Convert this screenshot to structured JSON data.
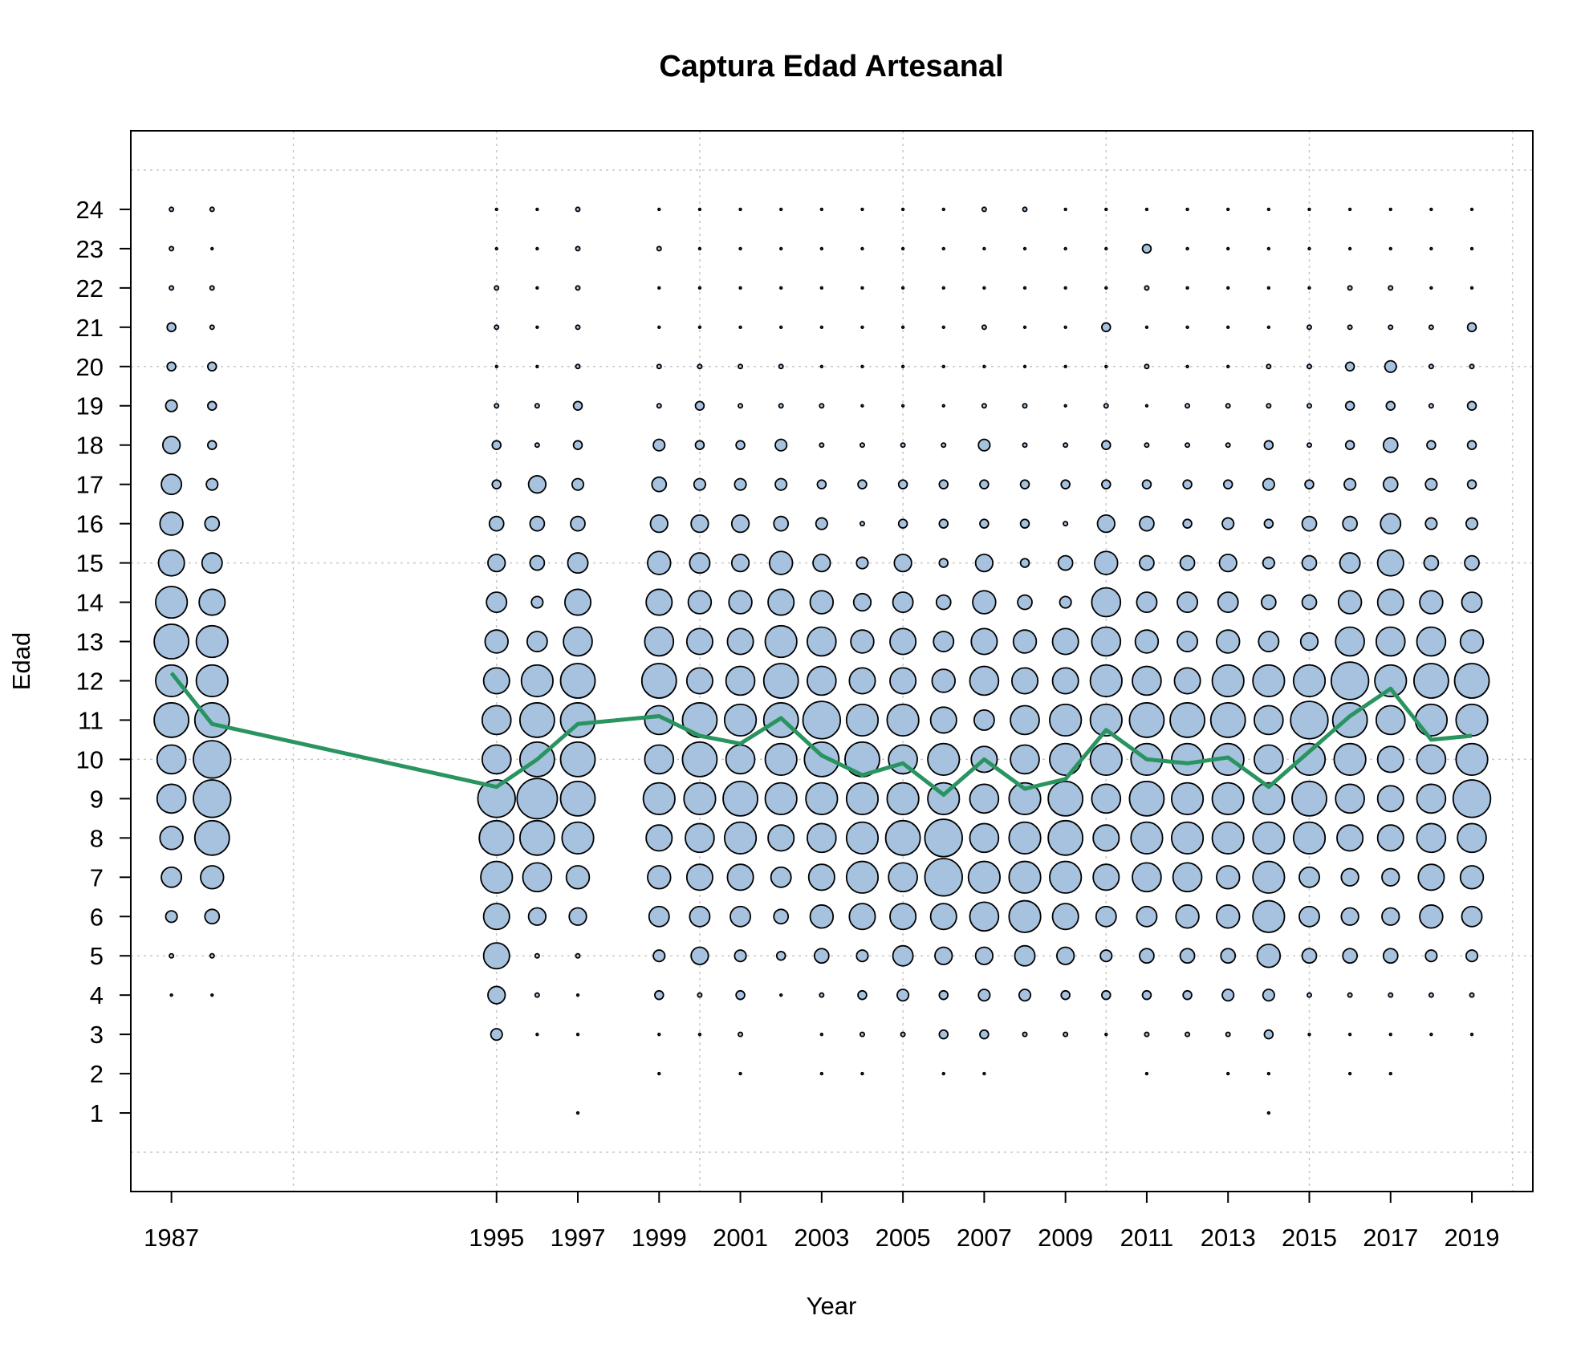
{
  "chart_data": {
    "type": "scatter",
    "subtype": "bubble",
    "title": "Captura Edad Artesanal",
    "xlabel": "Year",
    "ylabel": "Edad",
    "x_tick_labels": [
      1987,
      1995,
      1997,
      1999,
      2001,
      2003,
      2005,
      2007,
      2009,
      2011,
      2013,
      2015,
      2017,
      2019
    ],
    "y_tick_labels": [
      1,
      2,
      3,
      4,
      5,
      6,
      7,
      8,
      9,
      10,
      11,
      12,
      13,
      14,
      15,
      16,
      17,
      18,
      19,
      20,
      21,
      22,
      23,
      24
    ],
    "xlim": [
      1986,
      2020.5
    ],
    "ylim": [
      -1,
      26
    ],
    "grid": true,
    "grid_x": [
      1990,
      1995,
      2000,
      2005,
      2010,
      2015,
      2020
    ],
    "grid_y": [
      0,
      5,
      10,
      15,
      20,
      25
    ],
    "colors": {
      "bubble_fill": "#a6c2de",
      "bubble_stroke": "#000000",
      "mean_line": "#2a9461",
      "grid": "#c8c8c8"
    },
    "years": [
      1987,
      1988,
      1995,
      1996,
      1997,
      1999,
      2000,
      2001,
      2002,
      2003,
      2004,
      2005,
      2006,
      2007,
      2008,
      2009,
      2010,
      2011,
      2012,
      2013,
      2014,
      2015,
      2016,
      2017,
      2018,
      2019
    ],
    "ages": [
      1,
      2,
      3,
      4,
      5,
      6,
      7,
      8,
      9,
      10,
      11,
      12,
      13,
      14,
      15,
      16,
      17,
      18,
      19,
      20,
      21,
      22,
      23,
      24
    ],
    "bubble_radius_max_age_yr": 1,
    "bubble_size": [
      [
        0,
        0,
        0,
        1,
        2,
        4,
        7,
        8,
        10,
        10,
        12,
        11,
        12,
        11,
        9,
        8,
        7,
        6,
        4,
        3,
        3,
        2,
        2,
        2
      ],
      [
        0,
        0,
        0,
        1,
        2,
        5,
        8,
        12,
        13,
        13,
        12,
        11,
        11,
        9,
        7,
        5,
        4,
        3,
        3,
        3,
        2,
        2,
        1,
        2
      ],
      [
        0,
        0,
        4,
        6,
        9,
        9,
        11,
        12,
        13,
        10,
        10,
        9,
        8,
        7,
        6,
        5,
        3,
        3,
        2,
        1,
        2,
        2,
        1,
        1
      ],
      [
        0,
        0,
        1,
        2,
        2,
        6,
        10,
        12,
        14,
        12,
        12,
        11,
        7,
        4,
        5,
        5,
        6,
        2,
        2,
        1,
        1,
        1,
        1,
        1
      ],
      [
        1,
        0,
        1,
        1,
        2,
        6,
        8,
        11,
        12,
        12,
        12,
        12,
        10,
        9,
        7,
        5,
        4,
        3,
        3,
        2,
        2,
        2,
        2,
        2
      ],
      [
        0,
        1,
        1,
        3,
        4,
        7,
        8,
        9,
        11,
        10,
        10,
        12,
        10,
        9,
        8,
        6,
        5,
        4,
        2,
        2,
        1,
        1,
        2,
        1
      ],
      [
        0,
        0,
        1,
        2,
        6,
        7,
        9,
        10,
        11,
        12,
        12,
        9,
        9,
        8,
        7,
        6,
        4,
        3,
        3,
        2,
        1,
        1,
        1,
        1
      ],
      [
        0,
        1,
        2,
        3,
        4,
        7,
        9,
        11,
        12,
        10,
        11,
        10,
        9,
        8,
        6,
        6,
        4,
        3,
        2,
        2,
        1,
        1,
        1,
        1
      ],
      [
        0,
        0,
        0,
        1,
        3,
        5,
        7,
        9,
        11,
        11,
        12,
        12,
        11,
        9,
        8,
        5,
        4,
        4,
        2,
        2,
        1,
        1,
        1,
        1
      ],
      [
        0,
        1,
        1,
        2,
        5,
        8,
        9,
        10,
        11,
        12,
        13,
        10,
        10,
        8,
        6,
        4,
        3,
        2,
        2,
        1,
        1,
        1,
        1,
        1
      ],
      [
        0,
        1,
        2,
        3,
        4,
        9,
        11,
        11,
        11,
        12,
        11,
        9,
        8,
        6,
        4,
        2,
        3,
        2,
        1,
        1,
        1,
        1,
        1,
        1
      ],
      [
        0,
        0,
        2,
        4,
        7,
        9,
        10,
        12,
        11,
        10,
        11,
        9,
        9,
        7,
        6,
        3,
        3,
        2,
        1,
        1,
        1,
        1,
        1,
        1
      ],
      [
        0,
        1,
        3,
        3,
        6,
        9,
        13,
        13,
        11,
        11,
        9,
        8,
        7,
        5,
        3,
        3,
        3,
        2,
        1,
        1,
        1,
        1,
        1,
        1
      ],
      [
        0,
        1,
        3,
        4,
        6,
        10,
        11,
        10,
        10,
        9,
        7,
        10,
        9,
        8,
        6,
        3,
        3,
        4,
        2,
        1,
        2,
        1,
        1,
        2
      ],
      [
        0,
        0,
        2,
        4,
        7,
        11,
        11,
        11,
        11,
        10,
        10,
        9,
        8,
        5,
        3,
        3,
        3,
        2,
        2,
        1,
        1,
        1,
        1,
        2
      ],
      [
        0,
        0,
        2,
        3,
        6,
        9,
        11,
        12,
        12,
        11,
        11,
        9,
        9,
        4,
        5,
        2,
        3,
        2,
        1,
        1,
        1,
        1,
        1,
        1
      ],
      [
        0,
        0,
        1,
        3,
        4,
        7,
        9,
        9,
        10,
        11,
        11,
        11,
        10,
        10,
        8,
        6,
        3,
        3,
        2,
        1,
        3,
        1,
        1,
        1
      ],
      [
        0,
        1,
        2,
        3,
        5,
        7,
        10,
        11,
        12,
        11,
        12,
        10,
        8,
        7,
        5,
        5,
        3,
        2,
        1,
        2,
        1,
        2,
        3,
        1
      ],
      [
        0,
        0,
        2,
        3,
        5,
        8,
        10,
        11,
        11,
        11,
        12,
        9,
        7,
        7,
        5,
        3,
        3,
        2,
        2,
        1,
        1,
        1,
        1,
        1
      ],
      [
        0,
        1,
        2,
        4,
        5,
        8,
        8,
        11,
        11,
        11,
        12,
        11,
        8,
        7,
        6,
        4,
        3,
        2,
        2,
        1,
        1,
        1,
        1,
        1
      ],
      [
        1,
        1,
        3,
        4,
        8,
        11,
        11,
        11,
        11,
        10,
        10,
        11,
        7,
        5,
        4,
        3,
        4,
        3,
        2,
        2,
        1,
        1,
        1,
        1
      ],
      [
        0,
        0,
        1,
        2,
        5,
        7,
        7,
        11,
        12,
        11,
        13,
        11,
        6,
        5,
        5,
        5,
        3,
        2,
        2,
        2,
        2,
        1,
        1,
        1
      ],
      [
        0,
        1,
        1,
        2,
        5,
        6,
        6,
        9,
        10,
        11,
        12,
        13,
        10,
        8,
        7,
        5,
        4,
        3,
        3,
        3,
        2,
        2,
        1,
        1
      ],
      [
        0,
        1,
        1,
        2,
        5,
        6,
        6,
        9,
        9,
        9,
        10,
        11,
        10,
        9,
        9,
        7,
        5,
        5,
        3,
        4,
        2,
        2,
        1,
        1
      ],
      [
        0,
        0,
        1,
        2,
        4,
        8,
        9,
        10,
        10,
        10,
        11,
        12,
        10,
        8,
        5,
        4,
        4,
        3,
        2,
        2,
        2,
        1,
        1,
        1
      ],
      [
        0,
        0,
        1,
        2,
        4,
        7,
        8,
        10,
        13,
        11,
        11,
        12,
        8,
        7,
        5,
        4,
        3,
        3,
        3,
        2,
        3,
        1,
        1,
        1
      ]
    ],
    "series": [
      {
        "x": [
          1987,
          1988,
          1995,
          1996,
          1997,
          1999,
          2000,
          2001,
          2002,
          2003,
          2004,
          2005,
          2006,
          2007,
          2008,
          2009,
          2010,
          2011,
          2012,
          2013,
          2014,
          2015,
          2016,
          2017,
          2018,
          2019
        ],
        "y": [
          12.2,
          10.9,
          9.3,
          10.0,
          10.9,
          11.1,
          10.6,
          10.4,
          11.05,
          10.1,
          9.6,
          9.9,
          9.1,
          10.0,
          9.25,
          9.5,
          10.75,
          10.0,
          9.9,
          10.05,
          9.3,
          10.2,
          11.1,
          11.8,
          10.5,
          10.6
        ]
      }
    ]
  }
}
